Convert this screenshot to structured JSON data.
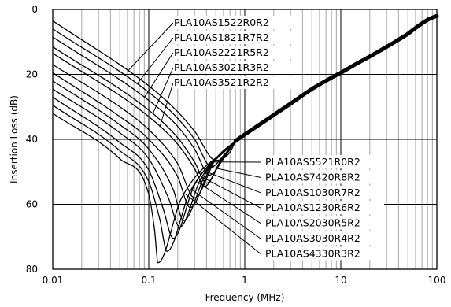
{
  "chart_data": {
    "type": "line",
    "title": "",
    "xlabel": "Frequency (MHz)",
    "ylabel": "Insertion Loss (dB)",
    "x_scale": "log",
    "xlim": [
      0.01,
      100
    ],
    "ylim": [
      0,
      80
    ],
    "y_inverted": true,
    "grid": true,
    "x_ticks": [
      "0.01",
      "0.1",
      "1",
      "10",
      "100"
    ],
    "y_ticks": [
      "0",
      "20",
      "40",
      "60",
      "80"
    ],
    "common_high_frequency_curve": {
      "x": [
        0.8,
        1,
        1.5,
        2,
        3,
        5,
        8,
        10,
        15,
        20,
        30,
        40,
        50,
        60,
        70,
        80,
        90,
        100
      ],
      "y": [
        40.5,
        38.5,
        35,
        32.5,
        29,
        24.5,
        21,
        19.5,
        16.5,
        14.5,
        11.5,
        9.3,
        7.5,
        5.7,
        4.3,
        3.2,
        2.5,
        2.0
      ]
    },
    "series": [
      {
        "name": "PLA10AS1522R0R2",
        "x": [
          0.01,
          0.1,
          0.2,
          0.3,
          0.5,
          0.7,
          0.8
        ],
        "y": [
          3.5,
          23.5,
          31.5,
          37.5,
          46.5,
          44.0,
          40.5
        ]
      },
      {
        "name": "PLA10AS1821R7R2",
        "x": [
          0.01,
          0.1,
          0.2,
          0.3,
          0.45,
          0.6,
          0.8
        ],
        "y": [
          6.0,
          25.5,
          33.5,
          40.0,
          48.5,
          45.0,
          40.5
        ]
      },
      {
        "name": "PLA10AS2221R5R2",
        "x": [
          0.01,
          0.1,
          0.2,
          0.3,
          0.43,
          0.6,
          0.8
        ],
        "y": [
          8.5,
          28.0,
          36.0,
          43.0,
          51.0,
          46.0,
          40.5
        ]
      },
      {
        "name": "PLA10AS3021R3R2",
        "x": [
          0.01,
          0.1,
          0.2,
          0.3,
          0.4,
          0.55,
          0.8
        ],
        "y": [
          11.5,
          31.0,
          39.5,
          47.0,
          53.5,
          47.0,
          40.5
        ]
      },
      {
        "name": "PLA10AS3521R2R2",
        "x": [
          0.01,
          0.1,
          0.2,
          0.3,
          0.38,
          0.55,
          0.8
        ],
        "y": [
          13.5,
          33.0,
          41.5,
          49.0,
          54.5,
          47.5,
          40.5
        ]
      },
      {
        "name": "PLA10AS5521R0R2",
        "x": [
          0.01,
          0.05,
          0.1,
          0.2,
          0.3,
          0.5,
          0.8
        ],
        "y": [
          17.0,
          30.0,
          37.0,
          47.5,
          58.0,
          46.0,
          40.5
        ]
      },
      {
        "name": "PLA10AS7420R8R2",
        "x": [
          0.01,
          0.05,
          0.1,
          0.2,
          0.27,
          0.45,
          0.8
        ],
        "y": [
          19.5,
          33.0,
          40.0,
          51.5,
          61.0,
          48.0,
          40.5
        ]
      },
      {
        "name": "PLA10AS1030R7R2",
        "x": [
          0.01,
          0.05,
          0.1,
          0.18,
          0.23,
          0.4,
          0.8
        ],
        "y": [
          22.0,
          35.5,
          43.0,
          55.5,
          65.0,
          50.0,
          40.5
        ]
      },
      {
        "name": "PLA10AS1230R6R2",
        "x": [
          0.01,
          0.05,
          0.1,
          0.16,
          0.21,
          0.35,
          0.8
        ],
        "y": [
          24.5,
          38.0,
          46.0,
          58.0,
          67.0,
          52.0,
          40.5
        ]
      },
      {
        "name": "PLA10AS2030R5R2",
        "x": [
          0.01,
          0.05,
          0.1,
          0.14,
          0.18,
          0.3,
          0.8
        ],
        "y": [
          27.0,
          41.0,
          49.5,
          61.0,
          70.5,
          54.0,
          40.5
        ]
      },
      {
        "name": "PLA10AS3030R4R2",
        "x": [
          0.01,
          0.05,
          0.1,
          0.13,
          0.155,
          0.27,
          0.8
        ],
        "y": [
          29.5,
          43.5,
          53.0,
          64.5,
          74.5,
          56.0,
          40.5
        ]
      },
      {
        "name": "PLA10AS4330R3R2",
        "x": [
          0.01,
          0.05,
          0.1,
          0.115,
          0.125,
          0.22,
          0.8
        ],
        "y": [
          32.0,
          46.0,
          57.0,
          68.0,
          78.0,
          58.0,
          40.5
        ]
      }
    ]
  }
}
